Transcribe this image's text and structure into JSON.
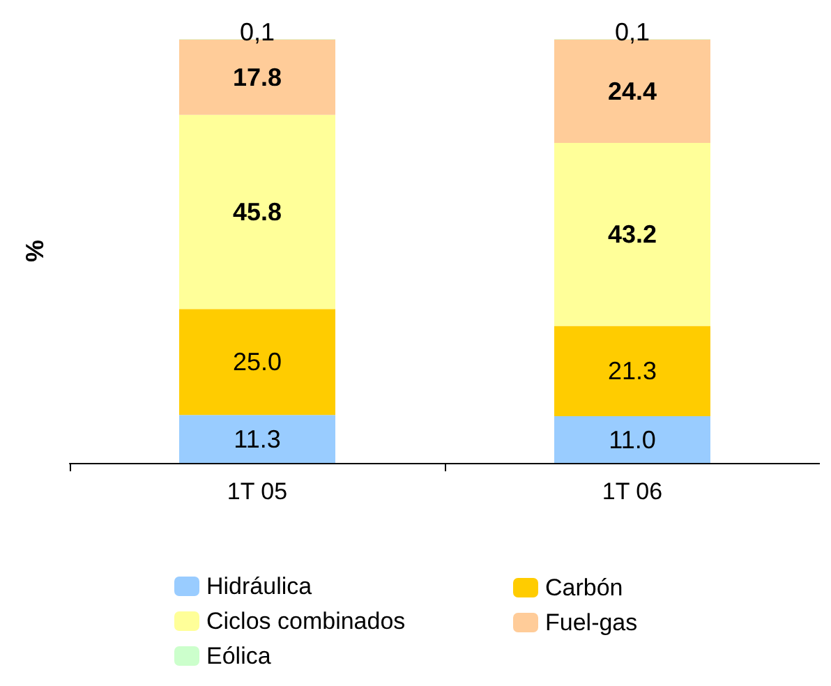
{
  "chart_data": {
    "type": "bar",
    "stacked": true,
    "ylabel": "%",
    "categories": [
      "1T 05",
      "1T 06"
    ],
    "legend": "bottom",
    "grid": false,
    "series": [
      {
        "name": "Hidráulica",
        "color": "#99ccff",
        "values": [
          11.3,
          11.0
        ],
        "value_labels": [
          "11.3",
          "11.0"
        ]
      },
      {
        "name": "Carbón",
        "color": "#ffcc00",
        "values": [
          25.0,
          21.3
        ],
        "value_labels": [
          "25.0",
          "21.3"
        ]
      },
      {
        "name": "Ciclos combinados",
        "color": "#ffff99",
        "values": [
          45.8,
          43.2
        ],
        "value_labels": [
          "45.8",
          "43.2"
        ]
      },
      {
        "name": "Fuel-gas",
        "color": "#ffcc99",
        "values": [
          17.8,
          24.4
        ],
        "value_labels": [
          "17.8",
          "24.4"
        ]
      },
      {
        "name": "Eólica",
        "color": "#ccffcc",
        "values": [
          0.1,
          0.1
        ],
        "value_labels": [
          "0,1",
          "0,1"
        ]
      }
    ]
  }
}
